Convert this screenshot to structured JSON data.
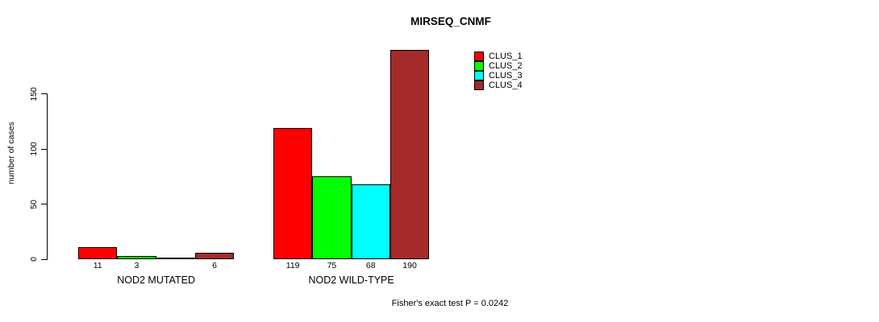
{
  "title": "MIRSEQ_CNMF",
  "footer": "Fisher's exact test P = 0.0242",
  "y_axis": {
    "label": "number of cases",
    "ticks": [
      0,
      50,
      100,
      150
    ]
  },
  "legend": {
    "items": [
      {
        "label": "CLUS_1",
        "color": "#FF0000"
      },
      {
        "label": "CLUS_2",
        "color": "#00FF00"
      },
      {
        "label": "CLUS_3",
        "color": "#00FFFF"
      },
      {
        "label": "CLUS_4",
        "color": "#A52A2A"
      }
    ]
  },
  "chart_data": {
    "type": "bar",
    "title": "MIRSEQ_CNMF",
    "xlabel": "",
    "ylabel": "number of cases",
    "ylim": [
      0,
      150
    ],
    "grid": false,
    "legend_position": "top-right",
    "categories": [
      "NOD2 MUTATED",
      "NOD2 WILD-TYPE"
    ],
    "series": [
      {
        "name": "CLUS_1",
        "color": "#FF0000",
        "values": [
          11,
          119
        ]
      },
      {
        "name": "CLUS_2",
        "color": "#00FF00",
        "values": [
          3,
          75
        ]
      },
      {
        "name": "CLUS_3",
        "color": "#00FFFF",
        "values": [
          0,
          68
        ]
      },
      {
        "name": "CLUS_4",
        "color": "#A52A2A",
        "values": [
          6,
          190
        ]
      }
    ],
    "bar_labels": [
      [
        "11",
        "3",
        "",
        "6"
      ],
      [
        "119",
        "75",
        "68",
        "190"
      ]
    ],
    "annotation": "Fisher's exact test P = 0.0242"
  }
}
